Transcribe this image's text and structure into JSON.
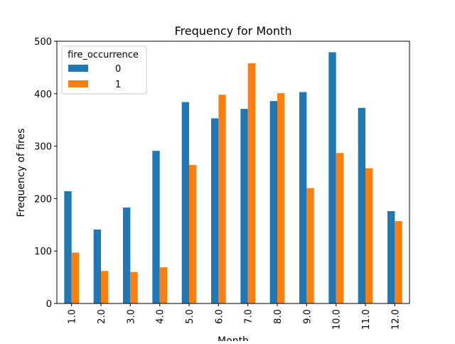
{
  "chart_data": {
    "type": "bar",
    "title": "Frequency for Month",
    "xlabel": "Month",
    "ylabel": "Frequency of fires",
    "categories": [
      "1.0",
      "2.0",
      "3.0",
      "4.0",
      "5.0",
      "6.0",
      "7.0",
      "8.0",
      "9.0",
      "10.0",
      "11.0",
      "12.0"
    ],
    "series": [
      {
        "name": "0",
        "color": "#1f77b4",
        "values": [
          214,
          141,
          183,
          291,
          384,
          353,
          371,
          386,
          403,
          479,
          373,
          176
        ]
      },
      {
        "name": "1",
        "color": "#ff7f0e",
        "values": [
          97,
          62,
          60,
          69,
          264,
          398,
          458,
          401,
          220,
          287,
          258,
          157
        ]
      }
    ],
    "ylim": [
      0,
      500
    ],
    "yticks": [
      0,
      100,
      200,
      300,
      400,
      500
    ],
    "legend": {
      "title": "fire_occurrence",
      "placement": "top-left"
    },
    "grid": false
  }
}
